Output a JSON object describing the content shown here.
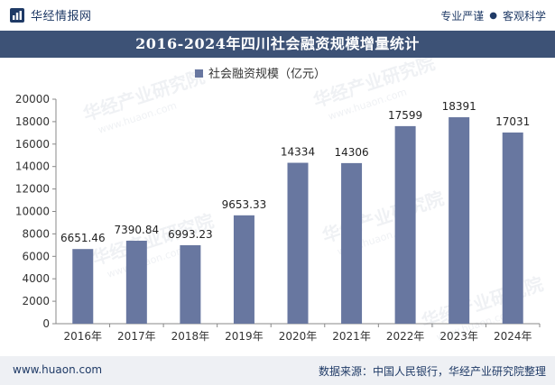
{
  "header": {
    "brand": "华经情报网",
    "tag1": "专业严谨",
    "tag2": "客观科学"
  },
  "title": "2016-2024年四川社会融资规模增量统计",
  "legend_label": "社会融资规模（亿元）",
  "footer": {
    "website": "www.huaon.com",
    "source": "数据来源：中国人民银行，华经产业研究院整理"
  },
  "watermark": {
    "text": "华经产业研究院",
    "url": "www.huaon.com"
  },
  "colors": {
    "bar": "#6877a0",
    "title_bg": "#3d5276",
    "brand": "#1f3a66"
  },
  "chart_data": {
    "type": "bar",
    "categories": [
      "2016年",
      "2017年",
      "2018年",
      "2019年",
      "2020年",
      "2021年",
      "2022年",
      "2023年",
      "2024年"
    ],
    "series": [
      {
        "name": "社会融资规模（亿元）",
        "values": [
          6651.46,
          7390.84,
          6993.23,
          9653.33,
          14334,
          14306,
          17599,
          18391,
          17031
        ]
      }
    ],
    "data_labels": [
      "6651.46",
      "7390.84",
      "6993.23",
      "9653.33",
      "14334",
      "14306",
      "17599",
      "18391",
      "17031"
    ],
    "ylim": [
      0,
      20000
    ],
    "yticks": [
      0,
      2000,
      4000,
      6000,
      8000,
      10000,
      12000,
      14000,
      16000,
      18000,
      20000
    ],
    "grid": false,
    "legend_position": "top-center"
  }
}
